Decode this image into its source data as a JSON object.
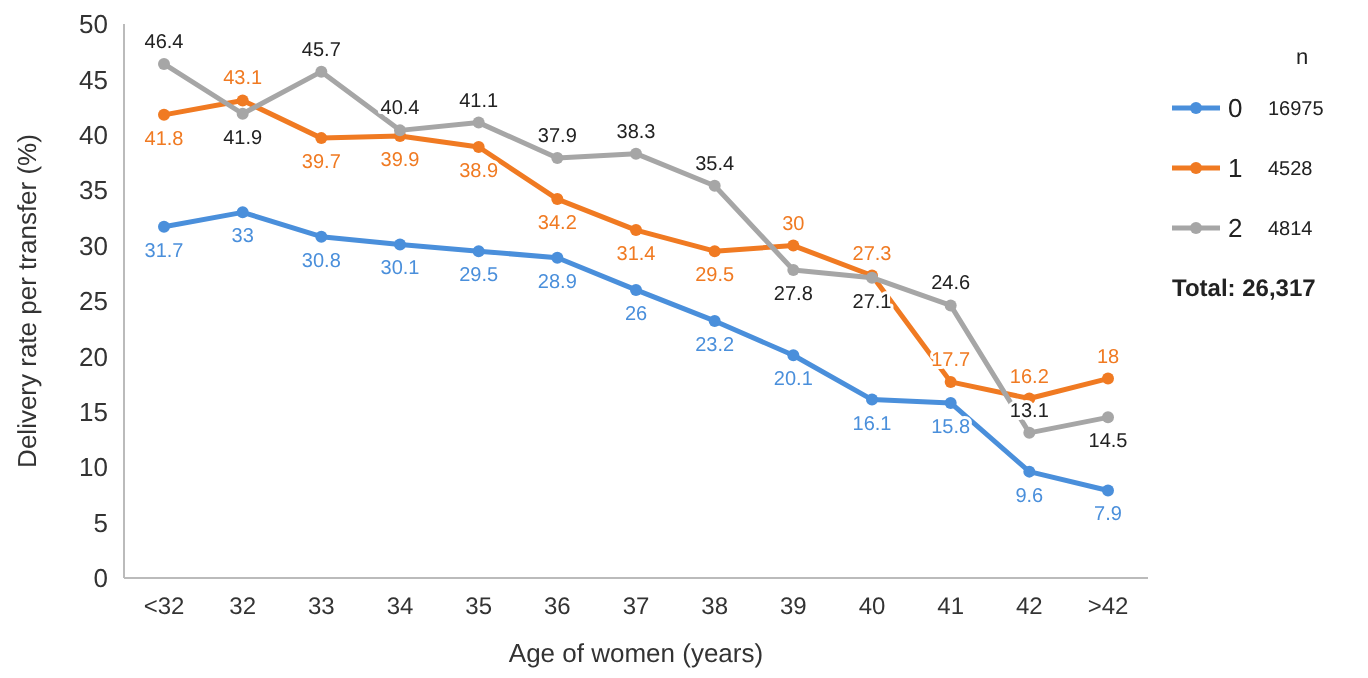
{
  "chart_data": {
    "type": "line",
    "xlabel": "Age of women (years)",
    "ylabel": "Delivery rate per transfer (%)",
    "categories": [
      "<32",
      "32",
      "33",
      "34",
      "35",
      "36",
      "37",
      "38",
      "39",
      "40",
      "41",
      "42",
      ">42"
    ],
    "series": [
      {
        "name": "0",
        "color": "#4a8fdb",
        "values": [
          31.7,
          33,
          30.8,
          30.1,
          29.5,
          28.9,
          26,
          23.2,
          20.1,
          16.1,
          15.8,
          9.6,
          7.9
        ]
      },
      {
        "name": "1",
        "color": "#f07a22",
        "values": [
          41.8,
          43.1,
          39.7,
          39.9,
          38.9,
          34.2,
          31.4,
          29.5,
          30,
          27.3,
          17.7,
          16.2,
          18
        ]
      },
      {
        "name": "2",
        "color": "#a6a6a6",
        "values": [
          46.4,
          41.9,
          45.7,
          40.4,
          41.1,
          37.9,
          38.3,
          35.4,
          27.8,
          27.1,
          24.6,
          13.1,
          14.5
        ]
      }
    ],
    "ylim": [
      0,
      50
    ],
    "yticks": [
      0,
      5,
      10,
      15,
      20,
      25,
      30,
      35,
      40,
      45,
      50
    ],
    "data_labels": true,
    "marker": "circle",
    "legend": "right",
    "grid": false,
    "annotations": [
      "n",
      "16975",
      "4528",
      "4814",
      "Total: 26,317"
    ]
  }
}
